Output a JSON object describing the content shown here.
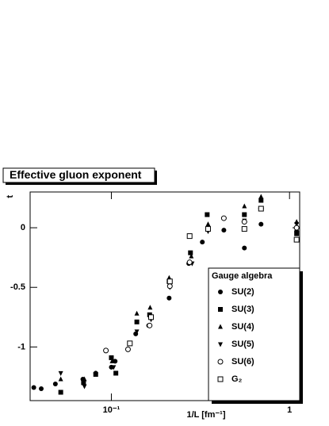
{
  "chart_data": {
    "type": "scatter",
    "title": "Effective gluon exponent",
    "y_label": "t",
    "x_label": "1/L [fm⁻¹]",
    "x_log": true,
    "xlim": [
      0.035,
      1.14
    ],
    "ylim": [
      -1.45,
      0.3
    ],
    "xticks": [
      {
        "value": 0.1,
        "label": "10⁻¹"
      },
      1
    ],
    "yticks": [
      0,
      -0.5,
      -1
    ],
    "legend_title": "Gauge algebra",
    "legend": "bottom-right",
    "series": [
      {
        "name": "SU(2)",
        "color": "#000000",
        "marker": "circle",
        "x": [
          0.0367,
          0.0404,
          0.0485,
          0.0692,
          0.0817,
          0.1,
          0.105,
          0.137,
          0.162,
          0.211,
          0.272,
          0.324,
          0.428,
          0.558,
          0.692,
          1.096
        ],
        "values": [
          -1.34,
          -1.35,
          -1.31,
          -1.27,
          -1.22,
          -1.17,
          -1.12,
          -0.89,
          -0.82,
          -0.59,
          -0.3,
          -0.12,
          -0.02,
          -0.17,
          0.03,
          -0.03
        ]
      },
      {
        "name": "SU(3)",
        "color": "#000000",
        "marker": "square",
        "x": [
          0.052,
          0.0698,
          0.0817,
          0.1,
          0.106,
          0.139,
          0.164,
          0.211,
          0.278,
          0.345,
          0.558,
          0.692,
          1.096
        ],
        "values": [
          -1.38,
          -1.3,
          -1.23,
          -1.09,
          -1.22,
          -0.79,
          -0.73,
          -0.45,
          -0.21,
          0.11,
          0.11,
          0.23,
          -0.05
        ]
      },
      {
        "name": "SU(4)",
        "color": "#000000",
        "marker": "triangle-up",
        "x": [
          0.052,
          0.0706,
          0.101,
          0.139,
          0.165,
          0.211,
          0.281,
          0.349,
          0.558,
          0.692,
          1.096
        ],
        "values": [
          -1.27,
          -1.27,
          -1.12,
          -0.72,
          -0.67,
          -0.42,
          -0.24,
          0.03,
          0.18,
          0.26,
          0.05
        ]
      },
      {
        "name": "SU(5)",
        "color": "#000000",
        "marker": "triangle-down",
        "x": [
          0.052,
          0.0706,
          0.103,
          0.139,
          0.167,
          0.213,
          0.284,
          0.349,
          0.558,
          0.692,
          1.096
        ],
        "values": [
          -1.22,
          -1.33,
          -1.17,
          -0.87,
          -0.77,
          -0.5,
          -0.3,
          -0.03,
          0.06,
          0.16,
          0.03
        ]
      },
      {
        "name": "SU(6)",
        "color": "#000000",
        "marker": "open-circle",
        "x": [
          0.0932,
          0.124,
          0.164,
          0.213,
          0.275,
          0.428,
          0.558,
          0.692,
          1.096
        ],
        "values": [
          -1.03,
          -1.02,
          -0.82,
          -0.49,
          -0.29,
          0.08,
          0.05,
          0.16,
          0
        ]
      },
      {
        "name": "G₂",
        "color": "#000000",
        "marker": "open-square",
        "x": [
          0.127,
          0.167,
          0.213,
          0.275,
          0.349,
          0.558,
          0.692,
          1.096
        ],
        "values": [
          -0.97,
          -0.75,
          -0.45,
          -0.07,
          -0.01,
          -0.01,
          0.16,
          -0.1
        ]
      }
    ]
  }
}
